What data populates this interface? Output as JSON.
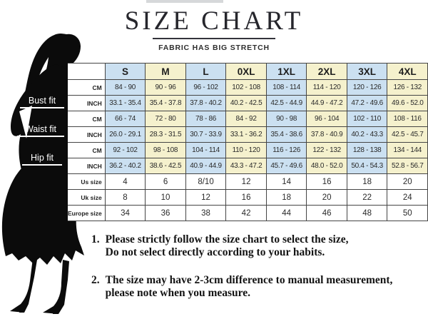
{
  "title": "SIZE CHART",
  "subtitle": "FABRIC HAS BIG STRETCH",
  "figure": {
    "labels": [
      "Bust fit",
      "Waist fit",
      "Hip fit"
    ]
  },
  "colors": {
    "cell_blue": "#cbe0f1",
    "cell_yellow": "#f5f1cd",
    "table_border": "#454545",
    "silhouette": "#0b0b0b",
    "text_dark": "#1d1d1d"
  },
  "chart_data": {
    "type": "table",
    "title": "SIZE CHART",
    "subtitle": "FABRIC HAS BIG STRETCH",
    "columns": [
      "S",
      "M",
      "L",
      "0XL",
      "1XL",
      "2XL",
      "3XL",
      "4XL"
    ],
    "rows": [
      {
        "group": "Bust fit",
        "label": "CM",
        "values": [
          "84 - 90",
          "90 - 96",
          "96 - 102",
          "102 - 108",
          "108 - 114",
          "114 - 120",
          "120 - 126",
          "126 - 132"
        ]
      },
      {
        "group": "Bust fit",
        "label": "INCH",
        "values": [
          "33.1 - 35.4",
          "35.4 - 37.8",
          "37.8 - 40.2",
          "40.2 - 42.5",
          "42.5 - 44.9",
          "44.9 - 47.2",
          "47.2 - 49.6",
          "49.6 - 52.0"
        ]
      },
      {
        "group": "Waist fit",
        "label": "CM",
        "values": [
          "66 - 74",
          "72 - 80",
          "78 - 86",
          "84 - 92",
          "90 - 98",
          "96 - 104",
          "102 - 110",
          "108 - 116"
        ]
      },
      {
        "group": "Waist fit",
        "label": "INCH",
        "values": [
          "26.0 - 29.1",
          "28.3 - 31.5",
          "30.7 - 33.9",
          "33.1 - 36.2",
          "35.4 - 38.6",
          "37.8 - 40.9",
          "40.2 - 43.3",
          "42.5 - 45.7"
        ]
      },
      {
        "group": "Hip fit",
        "label": "CM",
        "values": [
          "92 - 102",
          "98 - 108",
          "104 - 114",
          "110 - 120",
          "116 - 126",
          "122 - 132",
          "128 - 138",
          "134 - 144"
        ]
      },
      {
        "group": "Hip fit",
        "label": "INCH",
        "values": [
          "36.2 - 40.2",
          "38.6 - 42.5",
          "40.9 - 44.9",
          "43.3 - 47.2",
          "45.7 - 49.6",
          "48.0 - 52.0",
          "50.4 - 54.3",
          "52.8 - 56.7"
        ]
      },
      {
        "group": "",
        "label": "Us size",
        "values": [
          "4",
          "6",
          "8/10",
          "12",
          "14",
          "16",
          "18",
          "20"
        ]
      },
      {
        "group": "",
        "label": "Uk size",
        "values": [
          "8",
          "10",
          "12",
          "16",
          "18",
          "20",
          "22",
          "24"
        ]
      },
      {
        "group": "",
        "label": "Europe size",
        "values": [
          "34",
          "36",
          "38",
          "42",
          "44",
          "46",
          "48",
          "50"
        ]
      }
    ],
    "legend_position": "none",
    "grid": true
  },
  "notes": [
    {
      "number": "1.",
      "lines": [
        "Please strictly follow the size chart to select the size,",
        "Do not select directly according to your habits."
      ]
    },
    {
      "number": "2.",
      "lines": [
        "The size may have 2-3cm difference  to manual measurement,",
        "please note when you measure."
      ]
    }
  ]
}
